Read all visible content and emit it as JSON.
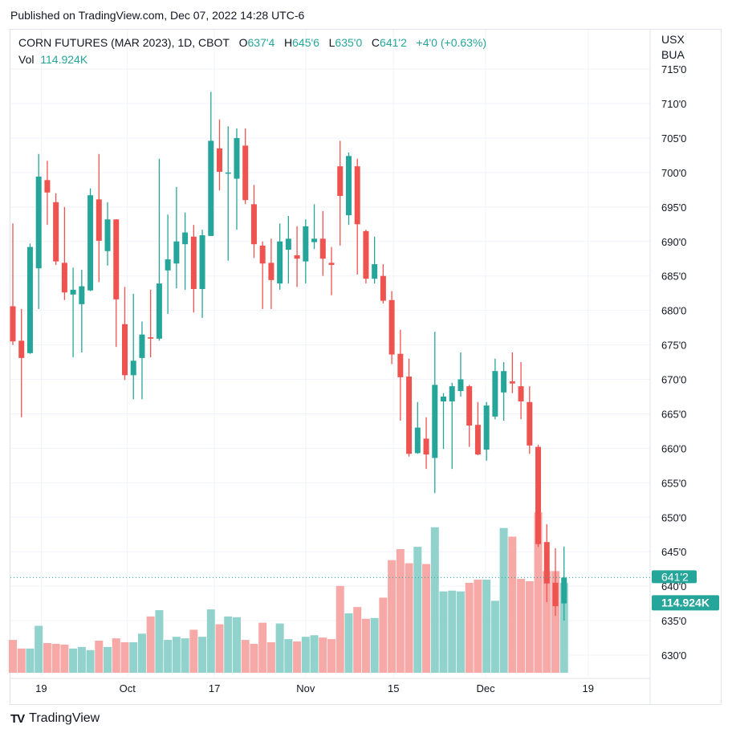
{
  "published": "Published on TradingView.com, Dec 07, 2022 14:28 UTC-6",
  "legend": {
    "symbol": "CORN FUTURES (MAR 2023), 1D, CBOT",
    "o_label": "O",
    "o": "637'4",
    "h_label": "H",
    "h": "645'6",
    "l_label": "L",
    "l": "635'0",
    "c_label": "C",
    "c": "641'2",
    "change": "+4'0 (+0.63%)",
    "vol_label": "Vol",
    "vol": "114.924K"
  },
  "currency": "USX",
  "unit": "BUA",
  "last_price_tag": "641'2",
  "last_volume_tag": "114.924K",
  "footer": {
    "logo_text": "TradingView"
  },
  "colors": {
    "up": "#26a69a",
    "down": "#ef5350",
    "up_vol": "#92d2cc",
    "down_vol": "#f7a9a7"
  },
  "chart_data": {
    "type": "candlestick",
    "title": "CORN FUTURES (MAR 2023), 1D, CBOT",
    "ylim": [
      626,
      715
    ],
    "y_ticks": [
      "715'0",
      "710'0",
      "705'0",
      "700'0",
      "695'0",
      "690'0",
      "685'0",
      "680'0",
      "675'0",
      "670'0",
      "665'0",
      "660'0",
      "655'0",
      "650'0",
      "645'0",
      "640'0",
      "635'0",
      "630'0"
    ],
    "y_tick_values": [
      715,
      710,
      705,
      700,
      695,
      690,
      685,
      680,
      675,
      670,
      665,
      660,
      655,
      650,
      645,
      640,
      635,
      630
    ],
    "x_ticks": [
      {
        "label": "19",
        "bar": 3.3
      },
      {
        "label": "Oct",
        "bar": 13.3
      },
      {
        "label": "17",
        "bar": 23.4
      },
      {
        "label": "Nov",
        "bar": 34
      },
      {
        "label": "15",
        "bar": 44.2
      },
      {
        "label": "Dec",
        "bar": 54.9
      },
      {
        "label": "19",
        "bar": 66.8
      }
    ],
    "ohlc": [
      [
        680.6,
        692.6,
        675.0,
        675.5
      ],
      [
        675.6,
        680.2,
        664.5,
        673.1
      ],
      [
        673.8,
        689.7,
        673.7,
        689.2
      ],
      [
        686.1,
        702.7,
        680.2,
        699.4
      ],
      [
        698.9,
        701.7,
        692.4,
        697.1
      ],
      [
        695.7,
        697.0,
        686.6,
        687.1
      ],
      [
        686.9,
        695.0,
        681.5,
        682.6
      ],
      [
        682.3,
        686.2,
        673.2,
        683.0
      ],
      [
        680.9,
        685.9,
        673.9,
        683.5
      ],
      [
        682.9,
        697.7,
        682.8,
        696.7
      ],
      [
        696.1,
        702.7,
        684.1,
        690.1
      ],
      [
        688.6,
        695.7,
        686.5,
        693.2
      ],
      [
        693.2,
        693.2,
        674.7,
        681.6
      ],
      [
        678.0,
        683.4,
        669.9,
        670.6
      ],
      [
        670.6,
        682.4,
        667.1,
        672.7
      ],
      [
        673.1,
        678.4,
        667.1,
        676.5
      ],
      [
        676.1,
        683.0,
        673.2,
        675.9
      ],
      [
        675.9,
        702.0,
        675.6,
        683.9
      ],
      [
        685.8,
        693.9,
        679.5,
        687.4
      ],
      [
        686.8,
        697.9,
        683.2,
        690.0
      ],
      [
        689.6,
        694.2,
        683.0,
        691.3
      ],
      [
        690.7,
        692.4,
        679.7,
        683.1
      ],
      [
        683.1,
        691.7,
        678.9,
        690.9
      ],
      [
        690.8,
        711.7,
        690.8,
        704.6
      ],
      [
        703.5,
        707.7,
        697.4,
        700.1
      ],
      [
        699.9,
        706.7,
        687.2,
        700.0
      ],
      [
        699.1,
        706.4,
        691.7,
        705.0
      ],
      [
        703.9,
        706.4,
        695.4,
        696.0
      ],
      [
        695.4,
        698.2,
        687.6,
        689.6
      ],
      [
        689.4,
        690.0,
        680.2,
        686.8
      ],
      [
        686.9,
        690.4,
        680.2,
        684.4
      ],
      [
        683.9,
        692.6,
        683.0,
        690.0
      ],
      [
        688.8,
        693.7,
        683.9,
        690.4
      ],
      [
        688.0,
        692.2,
        683.4,
        687.5
      ],
      [
        687.1,
        693.2,
        683.9,
        692.2
      ],
      [
        689.9,
        695.4,
        688.9,
        690.4
      ],
      [
        690.4,
        694.4,
        685.0,
        687.5
      ],
      [
        686.9,
        689.2,
        682.2,
        686.6
      ],
      [
        700.9,
        704.6,
        689.4,
        696.6
      ],
      [
        693.8,
        702.9,
        692.4,
        702.4
      ],
      [
        700.9,
        702.0,
        685.2,
        692.5
      ],
      [
        691.5,
        691.7,
        683.9,
        684.6
      ],
      [
        684.6,
        690.7,
        683.9,
        686.7
      ],
      [
        685.0,
        686.7,
        681.0,
        681.4
      ],
      [
        681.5,
        682.8,
        672.2,
        673.6
      ],
      [
        673.7,
        677.2,
        664.0,
        670.3
      ],
      [
        670.4,
        673.0,
        658.8,
        659.2
      ],
      [
        659.3,
        666.7,
        659.2,
        663.0
      ],
      [
        661.4,
        664.5,
        657.0,
        659.1
      ],
      [
        658.6,
        676.9,
        653.5,
        669.2
      ],
      [
        666.8,
        668.0,
        659.9,
        667.5
      ],
      [
        666.8,
        669.5,
        657.0,
        669.0
      ],
      [
        668.3,
        673.9,
        667.5,
        670.0
      ],
      [
        669.0,
        669.2,
        660.2,
        663.3
      ],
      [
        663.4,
        666.7,
        659.0,
        659.1
      ],
      [
        659.8,
        666.7,
        658.2,
        666.2
      ],
      [
        664.6,
        673.0,
        664.2,
        671.2
      ],
      [
        668.1,
        672.5,
        664.0,
        671.2
      ],
      [
        669.7,
        673.9,
        668.0,
        669.4
      ],
      [
        669.0,
        672.5,
        664.2,
        666.8
      ],
      [
        666.7,
        669.0,
        659.2,
        660.4
      ],
      [
        660.2,
        660.5,
        645.7,
        646.1
      ],
      [
        646.4,
        649.0,
        637.7,
        640.4
      ],
      [
        640.5,
        645.5,
        635.7,
        637.1
      ],
      [
        637.5,
        645.75,
        635.0,
        641.25
      ]
    ],
    "volume_k": [
      42,
      31,
      31,
      60,
      38,
      37,
      36,
      31,
      33,
      29,
      41,
      33,
      44,
      39,
      39,
      50,
      72,
      80,
      42,
      46,
      44,
      55,
      46,
      81,
      62,
      72,
      71,
      42,
      37,
      64,
      39,
      63,
      43,
      40,
      46,
      48,
      45,
      43,
      111,
      76,
      84,
      69,
      70,
      96,
      144,
      158,
      140,
      161,
      139,
      186,
      104,
      105,
      104,
      115,
      119,
      119,
      92,
      185,
      174,
      120,
      117,
      205,
      130,
      130,
      114.924
    ],
    "last_price": 641.25
  }
}
